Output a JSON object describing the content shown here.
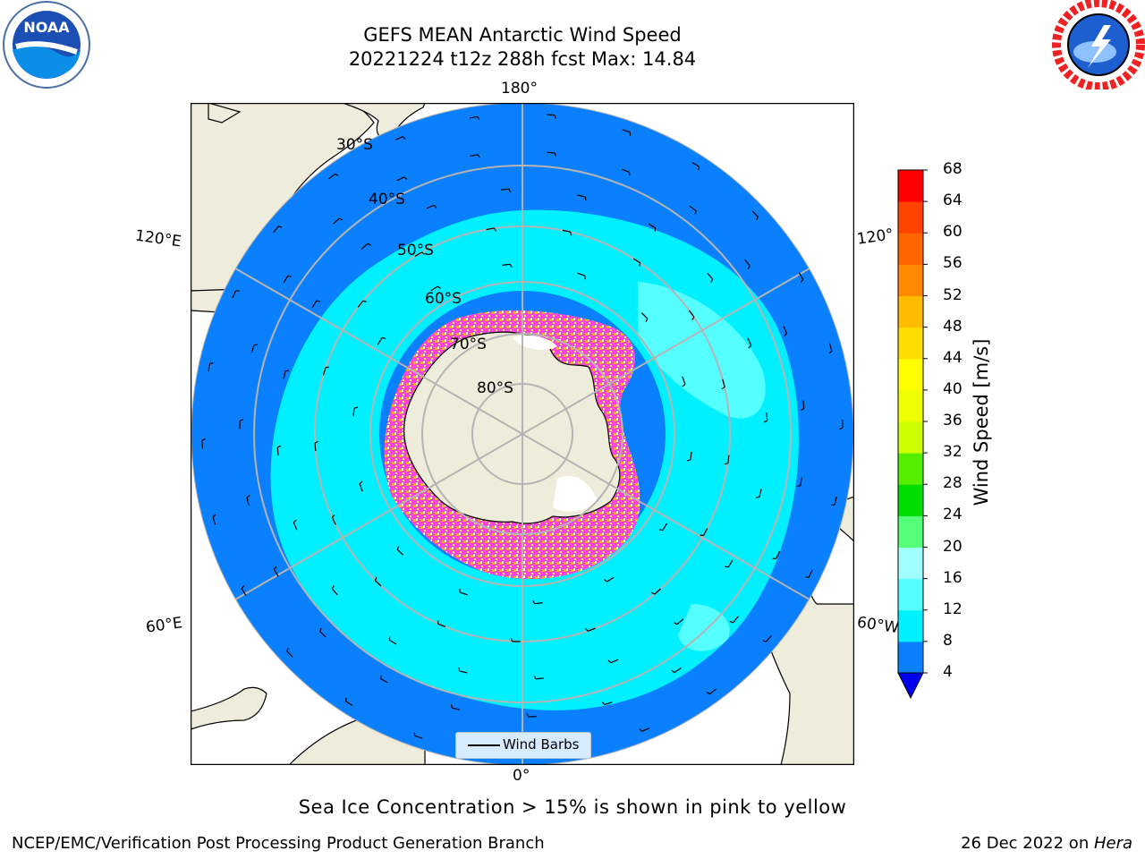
{
  "title_line1": "GEFS MEAN Antarctic Wind Speed",
  "title_line2": "20221224 t12z 288h fcst   Max: 14.84",
  "logos": {
    "left": {
      "name": "noaa-logo",
      "text": "NOAA"
    },
    "right": {
      "name": "nws-logo",
      "text": "NATIONAL WEATHER SERVICE"
    }
  },
  "map": {
    "projection": "south-polar-stereographic",
    "longitude_labels": {
      "top": "180°",
      "bottom": "0°",
      "left_upper": "120°E",
      "left_lower": "60°E",
      "right_upper": "120°",
      "right_lower": "60°W"
    },
    "latitude_labels": [
      "30°S",
      "40°S",
      "50°S",
      "60°S",
      "70°S",
      "80°S"
    ],
    "colors": {
      "land": "#eeecda",
      "ocean_4_8": "#0a80ff",
      "ocean_8_12": "#00f0ff",
      "ocean_12_16": "#55ffff",
      "sea_ice": "#ff33cc",
      "grid": "#b4b4b4"
    }
  },
  "legend": {
    "label": "Wind Barbs"
  },
  "colorbar": {
    "label": "Wind Speed [m/s]",
    "ticks": [
      "68",
      "64",
      "60",
      "56",
      "52",
      "48",
      "44",
      "40",
      "36",
      "32",
      "28",
      "24",
      "20",
      "16",
      "12",
      "8",
      "4"
    ],
    "colors": [
      "#0a80ff",
      "#00f0ff",
      "#55ffff",
      "#a0ffff",
      "#55ff77",
      "#00dd00",
      "#55ee00",
      "#ccff00",
      "#eeff00",
      "#ffff00",
      "#ffdd00",
      "#ffbb00",
      "#ff8800",
      "#ff6600",
      "#ff4400",
      "#ff0000"
    ],
    "extend_color": "#0000ee"
  },
  "caption": "Sea Ice Concentration > 15% is shown in pink to yellow",
  "footer": {
    "left": "NCEP/EMC/Verification Post Processing Product Generation Branch",
    "right_prefix": "26 Dec 2022 on ",
    "right_machine": "Hera"
  }
}
